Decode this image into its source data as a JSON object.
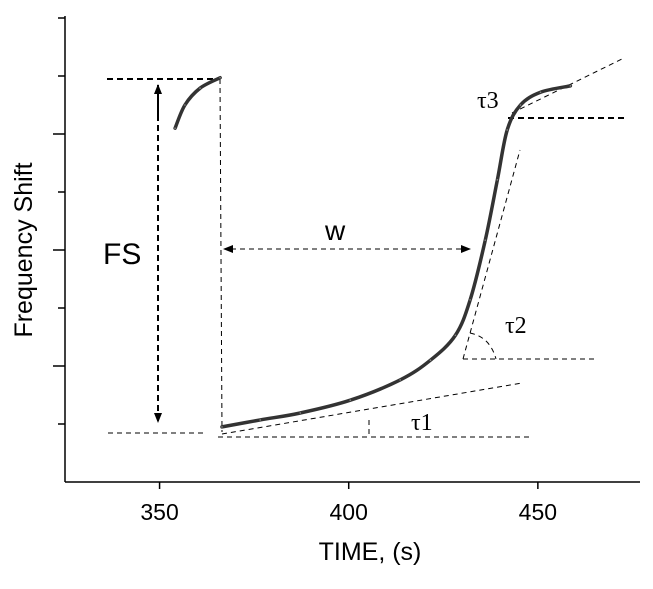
{
  "chart_data": {
    "type": "line",
    "title": "",
    "xlabel": "TIME, (s)",
    "ylabel": "Frequency Shift",
    "xlim": [
      325,
      477
    ],
    "ylim": [
      0,
      8
    ],
    "xticks": [
      350,
      400,
      450
    ],
    "xtick_labels": [
      "350",
      "400",
      "450"
    ],
    "yticks_major": [
      2,
      4,
      6
    ],
    "yticks_minor": [
      1,
      3,
      5,
      7,
      8
    ],
    "grid": false,
    "series": [
      {
        "name": "frequency shift",
        "x": [
          354.1,
          356.7,
          360.7,
          366.0,
          366.5,
          376.6,
          387.2,
          400.4,
          413.6,
          421.6,
          428.2,
          432.1,
          436.1,
          439.3,
          441.9,
          445.4,
          450.7,
          458.6
        ],
        "y": [
          6.1,
          6.5,
          6.79,
          6.97,
          0.95,
          1.07,
          1.19,
          1.41,
          1.76,
          2.1,
          2.53,
          3.14,
          4.17,
          5.21,
          6.07,
          6.5,
          6.72,
          6.83
        ]
      }
    ],
    "annotations": {
      "fs": "FS",
      "w": "w",
      "tau1": "τ1",
      "tau2": "τ2",
      "tau3": "τ3"
    }
  }
}
